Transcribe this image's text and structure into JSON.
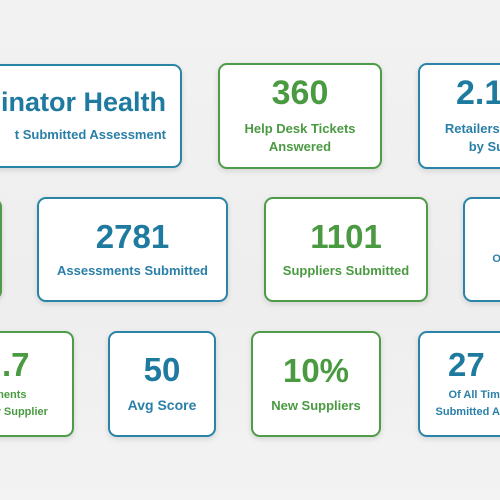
{
  "cards": [
    {
      "value": "llinator Health",
      "label": "t Submitted Assessment",
      "color": "blue"
    },
    {
      "value": "360",
      "label": "Help Desk Tickets\nAnswered",
      "color": "green"
    },
    {
      "value": "2.1",
      "label": "Retailers Su\nby Supp",
      "color": "blue"
    },
    {
      "value": "",
      "label": "",
      "color": "green"
    },
    {
      "value": "2781",
      "label": "Assessments Submitted",
      "color": "blue"
    },
    {
      "value": "1101",
      "label": "Suppliers Submitted",
      "color": "green"
    },
    {
      "value": "",
      "label": "Of S\nO",
      "color": "blue"
    },
    {
      "value": ".7",
      "label": "sments\nby Supplier",
      "color": "green"
    },
    {
      "value": "50",
      "label": "Avg Score",
      "color": "blue"
    },
    {
      "value": "10%",
      "label": "New Suppliers",
      "color": "green"
    },
    {
      "value": "27",
      "label": "Of All Time\nSubmitted All",
      "color": "blue"
    }
  ],
  "colors": {
    "blue": "#2a84a8",
    "green": "#4e9c48"
  }
}
